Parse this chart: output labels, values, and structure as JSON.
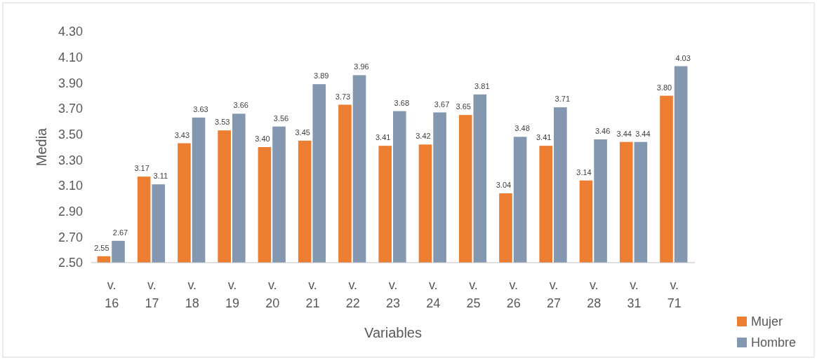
{
  "chart_data": {
    "type": "bar",
    "xlabel": "Variables",
    "ylabel": "Media",
    "categories": [
      "v. 16",
      "v. 17",
      "v. 18",
      "v. 19",
      "v. 20",
      "v. 21",
      "v. 22",
      "v. 23",
      "v. 24",
      "v. 25",
      "v. 26",
      "v. 27",
      "v. 28",
      "v. 31",
      "v. 71"
    ],
    "series": [
      {
        "name": "Mujer",
        "color": "#ed7d31",
        "values": [
          2.55,
          3.17,
          3.43,
          3.53,
          3.4,
          3.45,
          3.73,
          3.41,
          3.42,
          3.65,
          3.04,
          3.41,
          3.14,
          3.44,
          3.8
        ],
        "value_labels": [
          "2.55",
          "3.17",
          "3.43",
          "3.53",
          "3.40",
          "3.45",
          "3.73",
          "3.41",
          "3.42",
          "3.65",
          "3.04",
          "3.41",
          "3.14",
          "3.44",
          "3.80"
        ]
      },
      {
        "name": "Hombre",
        "color": "#8497b0",
        "values": [
          2.67,
          3.11,
          3.63,
          3.66,
          3.56,
          3.89,
          3.96,
          3.68,
          3.67,
          3.81,
          3.48,
          3.71,
          3.46,
          3.44,
          4.03
        ],
        "value_labels": [
          "2.67",
          "3.11",
          "3.63",
          "3.66",
          "3.56",
          "3.89",
          "3.96",
          "3.68",
          "3.67",
          "3.81",
          "3.48",
          "3.71",
          "3.46",
          "3.44",
          "4.03"
        ]
      }
    ],
    "ylim": [
      2.5,
      4.3
    ],
    "yticks": [
      {
        "value": 2.5,
        "label": "2.50"
      },
      {
        "value": 2.7,
        "label": "2.70"
      },
      {
        "value": 2.9,
        "label": "2.90"
      },
      {
        "value": 3.1,
        "label": "3.10"
      },
      {
        "value": 3.3,
        "label": "3.30"
      },
      {
        "value": 3.5,
        "label": "3.50"
      },
      {
        "value": 3.7,
        "label": "3.70"
      },
      {
        "value": 3.9,
        "label": "3.90"
      },
      {
        "value": 4.1,
        "label": "4.10"
      },
      {
        "value": 4.3,
        "label": "4.30"
      }
    ],
    "grid": false,
    "legend": "bottom right"
  }
}
